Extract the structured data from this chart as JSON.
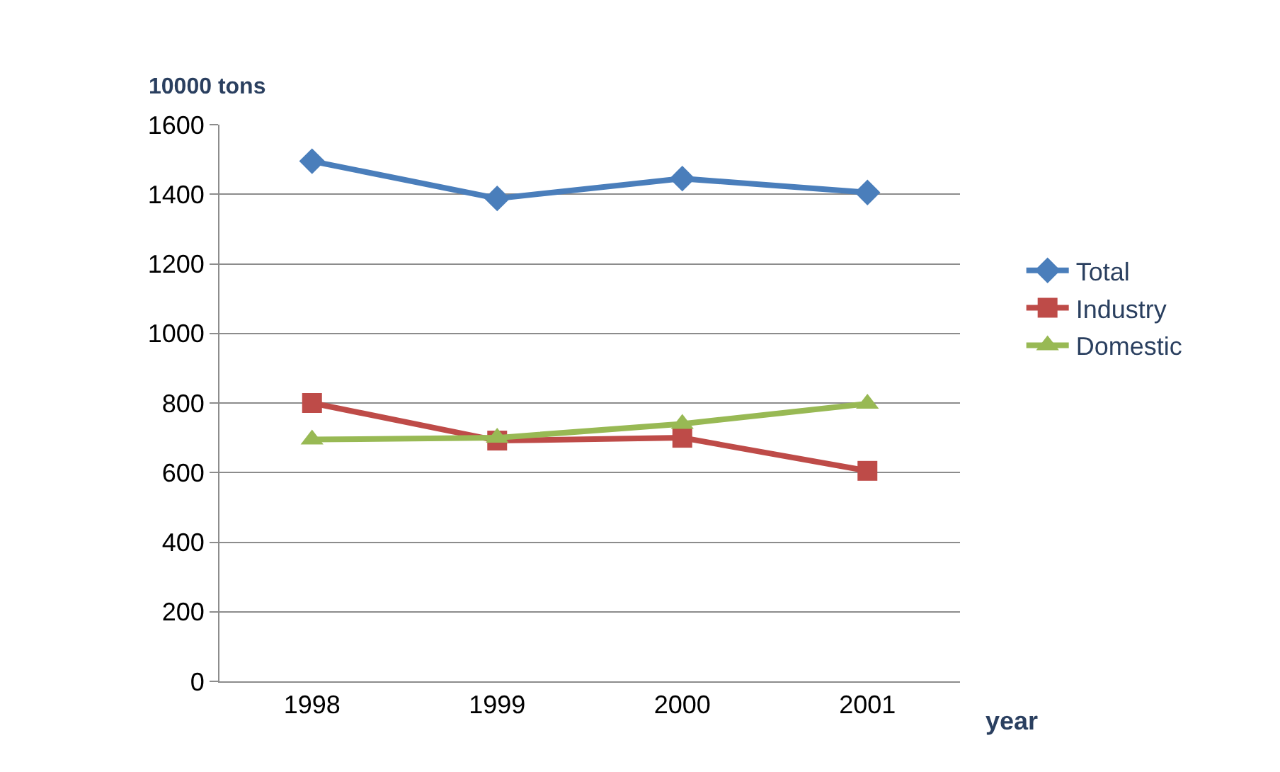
{
  "chart_data": {
    "type": "line",
    "xlabel": "year",
    "ylabel": "10000 tons",
    "categories": [
      "1998",
      "1999",
      "2000",
      "2001"
    ],
    "series": [
      {
        "name": "Total",
        "color": "#4a7ebb",
        "marker": "diamond",
        "values": [
          1495,
          1388,
          1445,
          1405
        ]
      },
      {
        "name": "Industry",
        "color": "#be4b48",
        "marker": "square",
        "values": [
          800,
          692,
          700,
          605
        ]
      },
      {
        "name": "Domestic",
        "color": "#98b954",
        "marker": "triangle",
        "values": [
          695,
          700,
          740,
          798
        ]
      }
    ],
    "ylim": [
      0,
      1600
    ],
    "yticks": [
      0,
      200,
      400,
      600,
      800,
      1000,
      1200,
      1400,
      1600
    ],
    "grid": "y",
    "legend": "right"
  }
}
